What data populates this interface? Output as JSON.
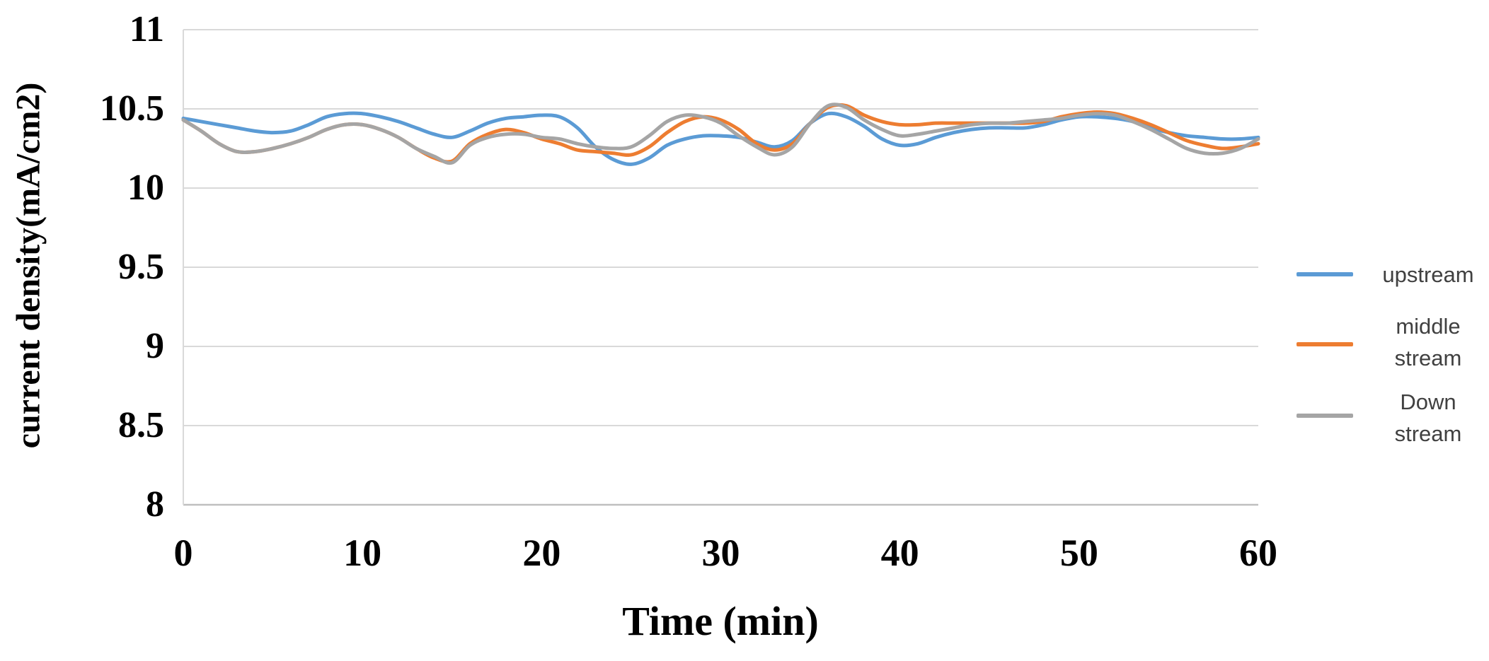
{
  "chart_data": {
    "type": "line",
    "title": "",
    "xlabel": "Time (min)",
    "ylabel": "current density(mA/cm2)",
    "xlim": [
      0,
      60
    ],
    "ylim": [
      8,
      11
    ],
    "xticks": [
      0,
      10,
      20,
      30,
      40,
      50,
      60
    ],
    "yticks": [
      11,
      10.5,
      10,
      9.5,
      9,
      8.5,
      8
    ],
    "grid": "horizontal",
    "legend_position": "right",
    "x": [
      0,
      1,
      2,
      3,
      4,
      5,
      6,
      7,
      8,
      9,
      10,
      11,
      12,
      13,
      14,
      15,
      16,
      17,
      18,
      19,
      20,
      21,
      22,
      23,
      24,
      25,
      26,
      27,
      28,
      29,
      30,
      31,
      32,
      33,
      34,
      35,
      36,
      37,
      38,
      39,
      40,
      41,
      42,
      43,
      44,
      45,
      46,
      47,
      48,
      49,
      50,
      51,
      52,
      53,
      54,
      55,
      56,
      57,
      58,
      59,
      60
    ],
    "series": [
      {
        "name": "upstream",
        "display_name": "upstream",
        "color": "#5B9BD5",
        "values": [
          10.44,
          10.42,
          10.4,
          10.38,
          10.36,
          10.35,
          10.36,
          10.4,
          10.45,
          10.47,
          10.47,
          10.45,
          10.42,
          10.38,
          10.34,
          10.32,
          10.36,
          10.41,
          10.44,
          10.45,
          10.46,
          10.45,
          10.38,
          10.26,
          10.18,
          10.15,
          10.19,
          10.27,
          10.31,
          10.33,
          10.33,
          10.32,
          10.29,
          10.26,
          10.3,
          10.41,
          10.47,
          10.45,
          10.39,
          10.31,
          10.27,
          10.28,
          10.32,
          10.35,
          10.37,
          10.38,
          10.38,
          10.38,
          10.4,
          10.43,
          10.45,
          10.45,
          10.44,
          10.42,
          10.38,
          10.35,
          10.33,
          10.32,
          10.31,
          10.31,
          10.32
        ]
      },
      {
        "name": "middle stream",
        "display_name": "middle\nstream",
        "color": "#ED7D31",
        "values": [
          10.43,
          10.36,
          10.28,
          10.23,
          10.23,
          10.25,
          10.28,
          10.32,
          10.37,
          10.4,
          10.4,
          10.37,
          10.32,
          10.25,
          10.19,
          10.17,
          10.28,
          10.34,
          10.37,
          10.35,
          10.31,
          10.28,
          10.24,
          10.23,
          10.22,
          10.21,
          10.26,
          10.35,
          10.42,
          10.45,
          10.43,
          10.37,
          10.28,
          10.24,
          10.28,
          10.41,
          10.51,
          10.52,
          10.46,
          10.42,
          10.4,
          10.4,
          10.41,
          10.41,
          10.41,
          10.41,
          10.41,
          10.41,
          10.42,
          10.45,
          10.47,
          10.48,
          10.47,
          10.44,
          10.4,
          10.35,
          10.3,
          10.27,
          10.25,
          10.26,
          10.28
        ]
      },
      {
        "name": "Down stream",
        "display_name": "Down\nstream",
        "color": "#A5A5A5",
        "values": [
          10.43,
          10.36,
          10.28,
          10.23,
          10.23,
          10.25,
          10.28,
          10.32,
          10.37,
          10.4,
          10.4,
          10.37,
          10.32,
          10.25,
          10.2,
          10.16,
          10.27,
          10.32,
          10.34,
          10.34,
          10.32,
          10.31,
          10.28,
          10.26,
          10.25,
          10.26,
          10.33,
          10.42,
          10.46,
          10.45,
          10.41,
          10.33,
          10.26,
          10.21,
          10.26,
          10.41,
          10.52,
          10.51,
          10.43,
          10.37,
          10.33,
          10.34,
          10.36,
          10.38,
          10.4,
          10.41,
          10.41,
          10.42,
          10.43,
          10.44,
          10.46,
          10.47,
          10.46,
          10.42,
          10.37,
          10.31,
          10.25,
          10.22,
          10.22,
          10.25,
          10.31
        ]
      }
    ]
  },
  "colors": {
    "background": "#FFFFFF",
    "gridline": "#D9D9D9",
    "axis_line": "#BFBFBF",
    "tick_text": "#000000",
    "legend_text": "#404040"
  }
}
